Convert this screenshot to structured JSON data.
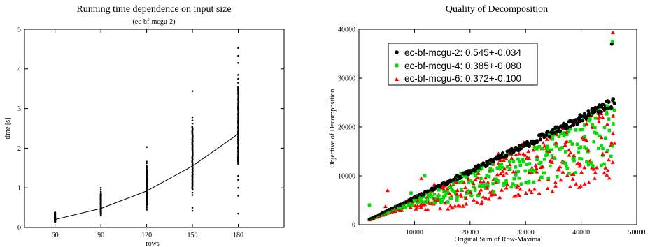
{
  "chart_data": [
    {
      "type": "scatter",
      "title": "Running time dependence on input size",
      "subtitle": "(ec-bf-mcgu-2)",
      "xlabel": "rows",
      "ylabel": "time [s]",
      "xlim": [
        40,
        210
      ],
      "ylim": [
        0,
        5
      ],
      "xticks": [
        60,
        90,
        120,
        150,
        180
      ],
      "yticks": [
        0,
        1,
        2,
        3,
        4,
        5
      ],
      "grid": false,
      "legend": null,
      "colors": {
        "points": "#000000",
        "line": "#000000"
      },
      "series": [
        {
          "kind": "points",
          "groups": [
            {
              "x": 60,
              "min": 0.14,
              "max": 0.38,
              "extras": []
            },
            {
              "x": 90,
              "min": 0.32,
              "max": 0.85,
              "extras": [
                0.3,
                0.9,
                0.95,
                1.0
              ]
            },
            {
              "x": 120,
              "min": 0.55,
              "max": 1.55,
              "extras": [
                0.45,
                0.5,
                1.62,
                1.66,
                2.03
              ]
            },
            {
              "x": 150,
              "min": 0.95,
              "max": 2.55,
              "extras": [
                0.82,
                0.88,
                0.5,
                0.42,
                2.62,
                2.7,
                2.78,
                3.44
              ]
            },
            {
              "x": 180,
              "min": 1.6,
              "max": 3.55,
              "extras": [
                0.8,
                1.0,
                1.2,
                1.3,
                0.35,
                3.65,
                3.75,
                3.85,
                4.15,
                4.33,
                4.53
              ]
            }
          ]
        },
        {
          "kind": "line",
          "x": [
            60,
            90,
            120,
            150,
            180
          ],
          "y": [
            0.2,
            0.48,
            0.92,
            1.55,
            2.36
          ]
        }
      ]
    },
    {
      "type": "scatter",
      "title": "Quality of Decomposition",
      "xlabel": "Original Sum of Row-Maxima",
      "ylabel": "Objective of Decomposition",
      "xlim": [
        0,
        50000
      ],
      "ylim": [
        0,
        40000
      ],
      "xticks": [
        0,
        10000,
        20000,
        30000,
        40000,
        50000
      ],
      "yticks": [
        0,
        10000,
        20000,
        30000,
        40000
      ],
      "grid": false,
      "legend": {
        "placement": "top-left"
      },
      "series": [
        {
          "name": "ec-bf-mcgu-2: 0.545+-0.034",
          "marker": "circle",
          "color": "#000000",
          "ratio": 0.545,
          "spread": 0.034
        },
        {
          "name": "ec-bf-mcgu-4: 0.385+-0.080",
          "marker": "square",
          "color": "#00dd00",
          "ratio": 0.385,
          "spread": 0.08
        },
        {
          "name": "ec-bf-mcgu-6: 0.372+-0.100",
          "marker": "triangle",
          "color": "#ff0000",
          "ratio": 0.372,
          "spread": 0.1
        }
      ],
      "x_range_observed": [
        2000,
        46000
      ],
      "max_points": [
        {
          "series": 0,
          "x": 45500,
          "y": 37000
        },
        {
          "series": 1,
          "x": 45600,
          "y": 37500
        },
        {
          "series": 2,
          "x": 45700,
          "y": 39300
        }
      ]
    }
  ]
}
